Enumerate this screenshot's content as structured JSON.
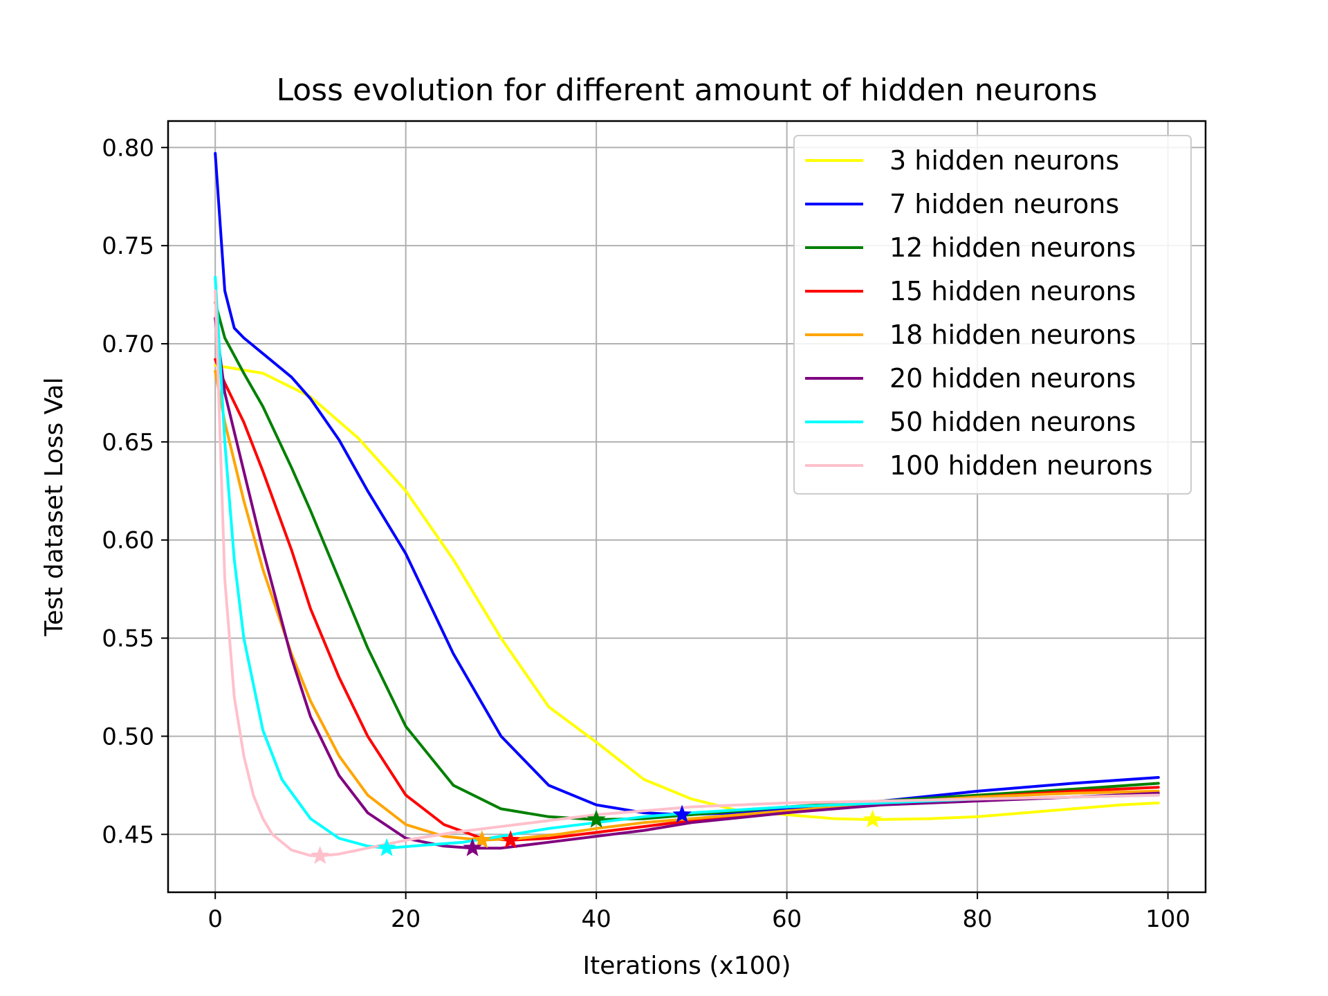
{
  "chart_data": {
    "type": "line",
    "title": "Loss evolution for different amount of hidden neurons",
    "xlabel": "Iterations (x100)",
    "ylabel": "Test dataset Loss Val",
    "xlim": [
      -4.95,
      103.95
    ],
    "ylim": [
      0.4205,
      0.8135
    ],
    "xticks": [
      0,
      20,
      40,
      60,
      80,
      100
    ],
    "xtick_labels": [
      "0",
      "20",
      "40",
      "60",
      "80",
      "100"
    ],
    "yticks": [
      0.45,
      0.5,
      0.55,
      0.6,
      0.65,
      0.7,
      0.75,
      0.8
    ],
    "ytick_labels": [
      "0.45",
      "0.50",
      "0.55",
      "0.60",
      "0.65",
      "0.70",
      "0.75",
      "0.80"
    ],
    "grid": true,
    "legend_position": "top-right",
    "series": [
      {
        "name": "3 hidden neurons",
        "color": "#ffff00",
        "x": [
          0,
          5,
          10,
          15,
          20,
          25,
          30,
          35,
          40,
          45,
          50,
          55,
          60,
          65,
          69,
          75,
          80,
          85,
          90,
          95,
          99
        ],
        "y": [
          0.689,
          0.685,
          0.673,
          0.652,
          0.625,
          0.59,
          0.55,
          0.515,
          0.497,
          0.478,
          0.468,
          0.462,
          0.46,
          0.458,
          0.4575,
          0.458,
          0.459,
          0.461,
          0.463,
          0.465,
          0.466
        ],
        "min_marker": {
          "x": 69,
          "y": 0.4575
        }
      },
      {
        "name": "7 hidden neurons",
        "color": "#0000ff",
        "x": [
          0,
          1,
          2,
          3,
          5,
          8,
          10,
          13,
          16,
          20,
          25,
          30,
          35,
          40,
          45,
          49,
          55,
          60,
          70,
          80,
          90,
          99
        ],
        "y": [
          0.797,
          0.727,
          0.708,
          0.703,
          0.695,
          0.683,
          0.672,
          0.651,
          0.625,
          0.593,
          0.542,
          0.5,
          0.475,
          0.465,
          0.461,
          0.46,
          0.461,
          0.463,
          0.467,
          0.472,
          0.476,
          0.479
        ],
        "min_marker": {
          "x": 49,
          "y": 0.46
        }
      },
      {
        "name": "12 hidden neurons",
        "color": "#008000",
        "x": [
          0,
          1,
          3,
          5,
          8,
          10,
          13,
          16,
          20,
          25,
          30,
          35,
          40,
          45,
          50,
          60,
          70,
          80,
          90,
          99
        ],
        "y": [
          0.721,
          0.703,
          0.685,
          0.668,
          0.637,
          0.615,
          0.58,
          0.545,
          0.505,
          0.475,
          0.463,
          0.459,
          0.4575,
          0.458,
          0.46,
          0.464,
          0.467,
          0.47,
          0.473,
          0.476
        ],
        "min_marker": {
          "x": 40,
          "y": 0.4575
        }
      },
      {
        "name": "15 hidden neurons",
        "color": "#ff0000",
        "x": [
          0,
          1,
          3,
          5,
          8,
          10,
          13,
          16,
          20,
          24,
          28,
          31,
          35,
          40,
          45,
          50,
          60,
          70,
          80,
          90,
          99
        ],
        "y": [
          0.692,
          0.68,
          0.66,
          0.635,
          0.595,
          0.565,
          0.53,
          0.5,
          0.47,
          0.455,
          0.448,
          0.447,
          0.448,
          0.451,
          0.454,
          0.457,
          0.462,
          0.466,
          0.469,
          0.472,
          0.474
        ],
        "min_marker": {
          "x": 31,
          "y": 0.447
        }
      },
      {
        "name": "18 hidden neurons",
        "color": "#ffa500",
        "x": [
          0,
          1,
          3,
          5,
          8,
          10,
          13,
          16,
          20,
          24,
          28,
          32,
          36,
          40,
          45,
          50,
          60,
          70,
          80,
          90,
          99
        ],
        "y": [
          0.686,
          0.66,
          0.62,
          0.585,
          0.542,
          0.518,
          0.49,
          0.47,
          0.455,
          0.449,
          0.447,
          0.448,
          0.45,
          0.453,
          0.456,
          0.458,
          0.462,
          0.466,
          0.469,
          0.471,
          0.472
        ],
        "min_marker": {
          "x": 28,
          "y": 0.447
        }
      },
      {
        "name": "20 hidden neurons",
        "color": "#800080",
        "x": [
          0,
          1,
          3,
          5,
          8,
          10,
          13,
          16,
          20,
          24,
          27,
          30,
          35,
          40,
          45,
          50,
          60,
          70,
          80,
          90,
          99
        ],
        "y": [
          0.713,
          0.675,
          0.635,
          0.595,
          0.54,
          0.51,
          0.48,
          0.461,
          0.448,
          0.444,
          0.443,
          0.443,
          0.446,
          0.449,
          0.452,
          0.456,
          0.461,
          0.465,
          0.467,
          0.469,
          0.471
        ],
        "min_marker": {
          "x": 27,
          "y": 0.443
        }
      },
      {
        "name": "50 hidden neurons",
        "color": "#00ffff",
        "x": [
          0,
          1,
          2,
          3,
          5,
          7,
          10,
          13,
          16,
          18,
          22,
          26,
          30,
          35,
          40,
          45,
          50,
          60,
          70,
          80,
          90,
          99
        ],
        "y": [
          0.734,
          0.65,
          0.59,
          0.55,
          0.503,
          0.478,
          0.458,
          0.448,
          0.444,
          0.443,
          0.4445,
          0.446,
          0.449,
          0.453,
          0.456,
          0.459,
          0.461,
          0.464,
          0.466,
          0.468,
          0.469,
          0.47
        ],
        "min_marker": {
          "x": 18,
          "y": 0.443
        }
      },
      {
        "name": "100 hidden neurons",
        "color": "#ffc0cb",
        "x": [
          0,
          1,
          2,
          3,
          4,
          5,
          6,
          8,
          10,
          11,
          13,
          16,
          20,
          25,
          30,
          35,
          40,
          50,
          60,
          70,
          80,
          90,
          99
        ],
        "y": [
          0.727,
          0.58,
          0.52,
          0.49,
          0.47,
          0.458,
          0.45,
          0.442,
          0.4392,
          0.439,
          0.44,
          0.443,
          0.447,
          0.451,
          0.454,
          0.457,
          0.46,
          0.464,
          0.466,
          0.467,
          0.468,
          0.469,
          0.47
        ],
        "min_marker": {
          "x": 11,
          "y": 0.439
        }
      }
    ]
  }
}
